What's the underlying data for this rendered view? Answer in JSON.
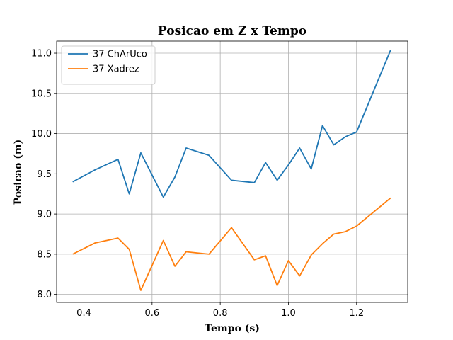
{
  "chart_data": {
    "type": "line",
    "title": "Posicao em Z x Tempo",
    "xlabel": "Tempo (s)",
    "ylabel": "Posicao (m)",
    "xlim": [
      0.32,
      1.35
    ],
    "ylim": [
      7.9,
      11.15
    ],
    "xticks": [
      0.4,
      0.6,
      0.8,
      1.0,
      1.2
    ],
    "xtick_labels": [
      "0.4",
      "0.6",
      "0.8",
      "1.0",
      "1.2"
    ],
    "yticks": [
      8.0,
      8.5,
      9.0,
      9.5,
      10.0,
      10.5,
      11.0
    ],
    "ytick_labels": [
      "8.0",
      "8.5",
      "9.0",
      "9.5",
      "10.0",
      "10.5",
      "11.0"
    ],
    "grid": true,
    "legend_position": "top-left",
    "series": [
      {
        "name": "37 ChArUco",
        "color": "#1f77b4",
        "x": [
          0.367,
          0.433,
          0.5,
          0.533,
          0.567,
          0.633,
          0.667,
          0.7,
          0.767,
          0.833,
          0.9,
          0.933,
          0.967,
          1.0,
          1.033,
          1.067,
          1.1,
          1.133,
          1.167,
          1.2,
          1.3
        ],
        "y": [
          9.4,
          9.55,
          9.68,
          9.25,
          9.76,
          9.21,
          9.46,
          9.82,
          9.73,
          9.42,
          9.39,
          9.64,
          9.42,
          9.61,
          9.82,
          9.56,
          10.1,
          9.86,
          9.96,
          10.02,
          11.04
        ]
      },
      {
        "name": "37 Xadrez",
        "color": "#ff7f0e",
        "x": [
          0.367,
          0.433,
          0.5,
          0.533,
          0.567,
          0.633,
          0.667,
          0.7,
          0.767,
          0.833,
          0.9,
          0.933,
          0.967,
          1.0,
          1.033,
          1.067,
          1.1,
          1.133,
          1.167,
          1.2,
          1.3
        ],
        "y": [
          8.5,
          8.64,
          8.7,
          8.56,
          8.05,
          8.67,
          8.35,
          8.53,
          8.5,
          8.83,
          8.43,
          8.48,
          8.11,
          8.42,
          8.23,
          8.49,
          8.63,
          8.75,
          8.78,
          8.85,
          9.2
        ]
      }
    ]
  }
}
